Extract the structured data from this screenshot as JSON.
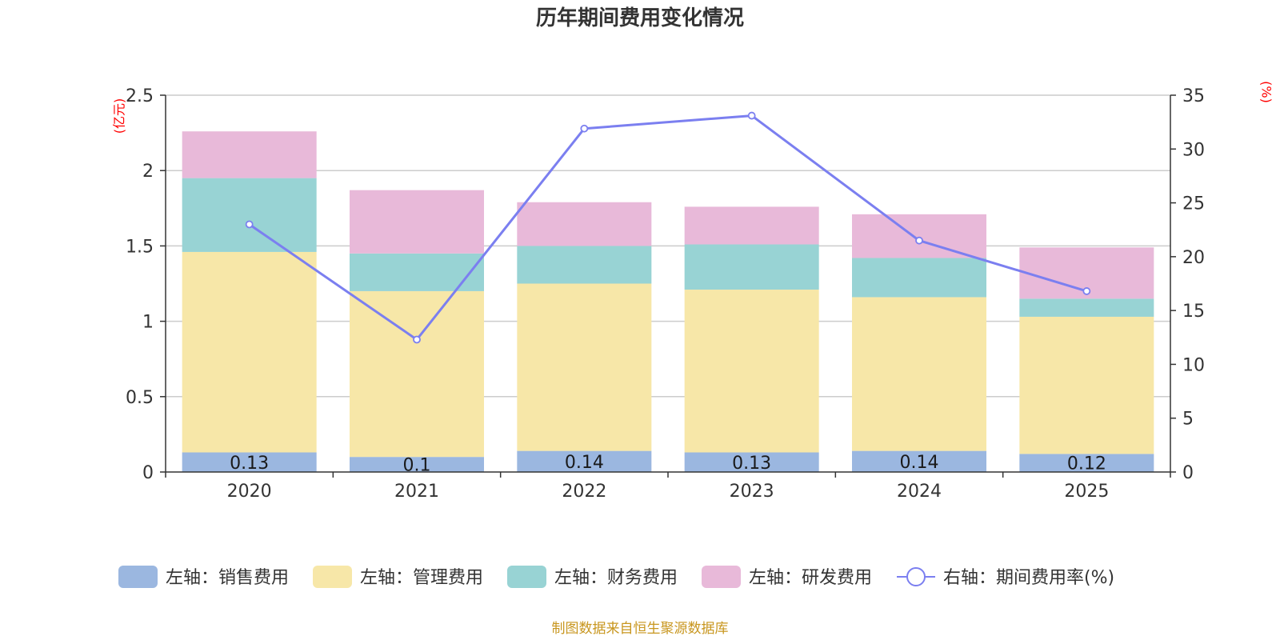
{
  "chart_data": {
    "type": "bar",
    "title": "历年期间费用变化情况",
    "categories": [
      "2020",
      "2021",
      "2022",
      "2023",
      "2024",
      "2025"
    ],
    "left_axis": {
      "unit": "(亿元)",
      "ylim": [
        0,
        2.5
      ],
      "ticks": [
        "0",
        "0.5",
        "1",
        "1.5",
        "2",
        "2.5"
      ],
      "tick_values": [
        0,
        0.5,
        1,
        1.5,
        2,
        2.5
      ]
    },
    "right_axis": {
      "unit": "(%)",
      "ylim": [
        0,
        35
      ],
      "ticks": [
        "0",
        "5",
        "10",
        "15",
        "20",
        "25",
        "30",
        "35"
      ],
      "tick_values": [
        0,
        5,
        10,
        15,
        20,
        25,
        30,
        35
      ]
    },
    "series": [
      {
        "name": "左轴：销售费用",
        "type": "bar",
        "axis": "left",
        "color": "#9bb7e0",
        "values": [
          0.13,
          0.1,
          0.14,
          0.13,
          0.14,
          0.12
        ],
        "labels": [
          "0.13",
          "0.1",
          "0.14",
          "0.13",
          "0.14",
          "0.12"
        ]
      },
      {
        "name": "左轴：管理费用",
        "type": "bar",
        "axis": "left",
        "color": "#f7e7a8",
        "values": [
          1.33,
          1.1,
          1.11,
          1.08,
          1.02,
          0.91
        ]
      },
      {
        "name": "左轴：财务费用",
        "type": "bar",
        "axis": "left",
        "color": "#98d3d4",
        "values": [
          0.49,
          0.25,
          0.25,
          0.3,
          0.26,
          0.12
        ]
      },
      {
        "name": "左轴：研发费用",
        "type": "bar",
        "axis": "left",
        "color": "#e8b9d9",
        "values": [
          0.31,
          0.42,
          0.29,
          0.25,
          0.29,
          0.34
        ]
      },
      {
        "name": "右轴：期间费用率(%)",
        "type": "line",
        "axis": "right",
        "color": "#7b7ff0",
        "values": [
          23.0,
          12.3,
          31.9,
          33.1,
          21.5,
          16.8
        ]
      }
    ],
    "grid": true,
    "legend_position": "bottom"
  },
  "source_text": "制图数据来自恒生聚源数据库"
}
